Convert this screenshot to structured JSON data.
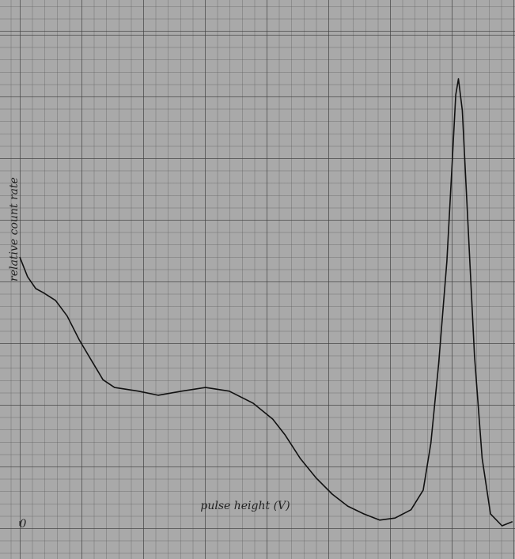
{
  "chart_data": {
    "type": "line",
    "y_label": "relative count rate",
    "x_label": "pulse height (V)",
    "xlim": [
      0,
      9
    ],
    "ylim": [
      0,
      100
    ],
    "xticks": [
      0
    ],
    "color": "#111111",
    "x": [
      0,
      0.14,
      0.29,
      0.43,
      0.65,
      0.86,
      1.08,
      1.29,
      1.51,
      1.72,
      2.15,
      2.51,
      2.94,
      3.37,
      3.8,
      4.23,
      4.59,
      4.81,
      5.09,
      5.38,
      5.67,
      5.95,
      6.24,
      6.53,
      6.81,
      7.1,
      7.32,
      7.46,
      7.6,
      7.75,
      7.85,
      7.91,
      7.96,
      8.03,
      8.13,
      8.25,
      8.39,
      8.54,
      8.75,
      8.94
    ],
    "values": [
      51.9,
      48.1,
      45.8,
      45.0,
      43.5,
      40.5,
      35.9,
      32.1,
      28.2,
      26.7,
      26.0,
      25.2,
      26.0,
      26.7,
      26.0,
      23.7,
      20.6,
      17.6,
      13.0,
      9.2,
      6.1,
      3.8,
      2.3,
      1.1,
      1.5,
      3.1,
      6.9,
      16.0,
      31.3,
      51.1,
      71.0,
      83.2,
      86.3,
      80.2,
      58.8,
      32.8,
      13.0,
      2.3,
      0,
      0.8
    ]
  }
}
